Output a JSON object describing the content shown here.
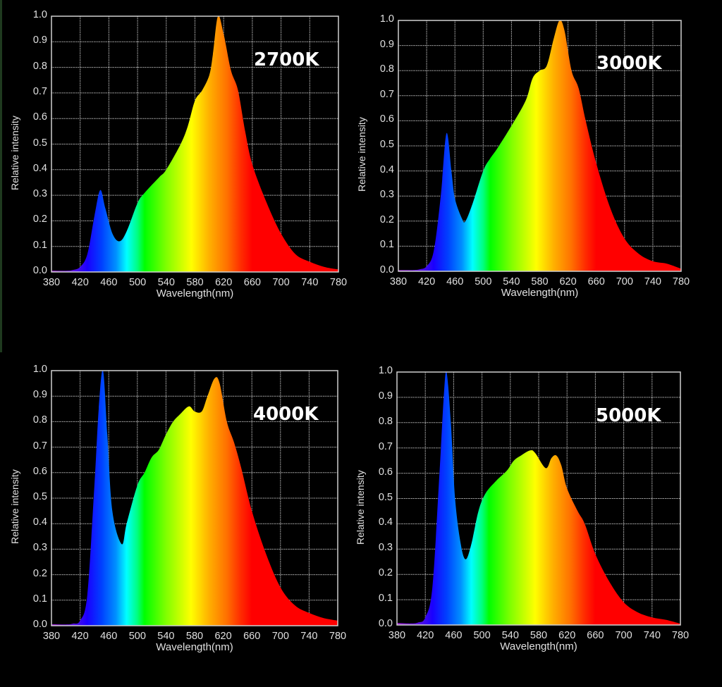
{
  "figure": {
    "background": "#000000",
    "grid_color": "#bdbdbd",
    "frame_color": "#cfcfcf",
    "text_color": "#e0e0e0"
  },
  "chart_data": [
    {
      "type": "area",
      "title": "2700K",
      "xlabel": "Wavelength(nm)",
      "ylabel": "Relative intensity",
      "xlim": [
        380,
        780
      ],
      "ylim": [
        0.0,
        1.0
      ],
      "x_ticks": [
        "380",
        "420",
        "460",
        "500",
        "540",
        "580",
        "620",
        "660",
        "700",
        "740",
        "780"
      ],
      "y_ticks": [
        "0.0",
        "0.1",
        "0.2",
        "0.3",
        "0.4",
        "0.5",
        "0.6",
        "0.7",
        "0.8",
        "0.9",
        "1.0"
      ],
      "grid": true,
      "fill": "visible-spectrum-gradient",
      "x": [
        380,
        400,
        410,
        420,
        430,
        440,
        448,
        455,
        465,
        475,
        485,
        500,
        510,
        530,
        540,
        560,
        570,
        580,
        590,
        600,
        605,
        612,
        620,
        630,
        640,
        650,
        660,
        680,
        700,
        720,
        740,
        760,
        780
      ],
      "y": [
        0.005,
        0.005,
        0.008,
        0.02,
        0.07,
        0.22,
        0.32,
        0.25,
        0.15,
        0.12,
        0.16,
        0.27,
        0.31,
        0.37,
        0.4,
        0.5,
        0.57,
        0.67,
        0.71,
        0.77,
        0.85,
        1.0,
        0.93,
        0.79,
        0.71,
        0.55,
        0.42,
        0.27,
        0.15,
        0.07,
        0.04,
        0.02,
        0.01
      ]
    },
    {
      "type": "area",
      "title": "3000K",
      "xlabel": "Wavelength(nm)",
      "ylabel": "Relative intensity",
      "xlim": [
        380,
        780
      ],
      "ylim": [
        0.0,
        1.0
      ],
      "x_ticks": [
        "380",
        "420",
        "460",
        "500",
        "540",
        "580",
        "620",
        "660",
        "700",
        "740",
        "780"
      ],
      "y_ticks": [
        "0.0",
        "0.1",
        "0.2",
        "0.3",
        "0.4",
        "0.5",
        "0.6",
        "0.7",
        "0.8",
        "0.9",
        "1.0"
      ],
      "grid": true,
      "fill": "visible-spectrum-gradient",
      "x": [
        380,
        400,
        410,
        420,
        430,
        440,
        448,
        455,
        460,
        470,
        475,
        485,
        500,
        510,
        520,
        540,
        560,
        570,
        580,
        590,
        600,
        608,
        615,
        625,
        635,
        645,
        660,
        680,
        700,
        720,
        740,
        760,
        780
      ],
      "y": [
        0.005,
        0.005,
        0.008,
        0.02,
        0.08,
        0.3,
        0.55,
        0.4,
        0.29,
        0.21,
        0.2,
        0.27,
        0.4,
        0.45,
        0.49,
        0.58,
        0.68,
        0.77,
        0.8,
        0.82,
        0.93,
        1.0,
        0.96,
        0.8,
        0.73,
        0.6,
        0.43,
        0.25,
        0.13,
        0.07,
        0.04,
        0.03,
        0.01
      ]
    },
    {
      "type": "area",
      "title": "4000K",
      "xlabel": "Wavelength(nm)",
      "ylabel": "Relative intensity",
      "xlim": [
        380,
        780
      ],
      "ylim": [
        0.0,
        1.0
      ],
      "x_ticks": [
        "380",
        "420",
        "460",
        "500",
        "540",
        "580",
        "620",
        "660",
        "700",
        "740",
        "780"
      ],
      "y_ticks": [
        "0.0",
        "0.1",
        "0.2",
        "0.3",
        "0.4",
        "0.5",
        "0.6",
        "0.7",
        "0.8",
        "0.9",
        "1.0"
      ],
      "grid": true,
      "fill": "visible-spectrum-gradient",
      "x": [
        380,
        400,
        410,
        420,
        430,
        440,
        446,
        452,
        458,
        465,
        478,
        485,
        500,
        510,
        520,
        530,
        540,
        550,
        560,
        572,
        580,
        590,
        598,
        608,
        615,
        625,
        635,
        645,
        660,
        680,
        700,
        720,
        740,
        760,
        780
      ],
      "y": [
        0.006,
        0.005,
        0.008,
        0.02,
        0.12,
        0.55,
        0.85,
        1.0,
        0.75,
        0.45,
        0.32,
        0.4,
        0.55,
        0.6,
        0.66,
        0.69,
        0.75,
        0.8,
        0.83,
        0.86,
        0.84,
        0.84,
        0.9,
        0.97,
        0.95,
        0.8,
        0.72,
        0.62,
        0.45,
        0.28,
        0.15,
        0.08,
        0.05,
        0.03,
        0.02
      ]
    },
    {
      "type": "area",
      "title": "5000K",
      "xlabel": "Wavelength(nm)",
      "ylabel": "Relative intensity",
      "xlim": [
        380,
        780
      ],
      "ylim": [
        0.0,
        1.0
      ],
      "x_ticks": [
        "380",
        "420",
        "460",
        "500",
        "540",
        "580",
        "620",
        "660",
        "700",
        "740",
        "780"
      ],
      "y_ticks": [
        "0.0",
        "0.1",
        "0.2",
        "0.3",
        "0.4",
        "0.5",
        "0.6",
        "0.7",
        "0.8",
        "0.9",
        "1.0"
      ],
      "grid": true,
      "fill": "visible-spectrum-gradient",
      "x": [
        380,
        400,
        410,
        420,
        430,
        440,
        446,
        450,
        456,
        462,
        470,
        477,
        485,
        495,
        505,
        520,
        535,
        545,
        555,
        568,
        575,
        590,
        598,
        605,
        612,
        620,
        635,
        645,
        660,
        680,
        700,
        720,
        740,
        760,
        780
      ],
      "y": [
        0.008,
        0.006,
        0.01,
        0.03,
        0.15,
        0.6,
        0.9,
        1.0,
        0.8,
        0.5,
        0.32,
        0.26,
        0.32,
        0.45,
        0.52,
        0.57,
        0.61,
        0.65,
        0.67,
        0.69,
        0.68,
        0.62,
        0.66,
        0.67,
        0.63,
        0.54,
        0.45,
        0.4,
        0.28,
        0.17,
        0.09,
        0.05,
        0.03,
        0.02,
        0.005
      ]
    }
  ]
}
